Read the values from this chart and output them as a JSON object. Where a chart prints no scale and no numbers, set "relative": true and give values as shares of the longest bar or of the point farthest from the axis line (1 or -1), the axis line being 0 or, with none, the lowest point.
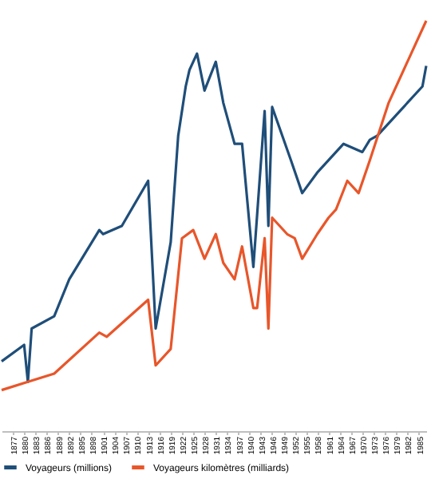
{
  "chart_data": {
    "type": "line",
    "relative": true,
    "legend": "bottom",
    "grid": false,
    "line_style": "solid",
    "marker": "none",
    "xlim": [
      1874,
      1987
    ],
    "xticks": [
      1877,
      1880,
      1883,
      1886,
      1889,
      1892,
      1895,
      1898,
      1901,
      1904,
      1907,
      1910,
      1913,
      1916,
      1919,
      1922,
      1925,
      1928,
      1931,
      1934,
      1937,
      1940,
      1943,
      1946,
      1949,
      1952,
      1955,
      1958,
      1961,
      1964,
      1967,
      1970,
      1973,
      1976,
      1979,
      1982,
      1985
    ],
    "series": [
      {
        "name": "Voyageurs (millions)",
        "color": "#1f4e79",
        "x": [
          1874,
          1880,
          1881,
          1882,
          1888,
          1892,
          1900,
          1901,
          1906,
          1913,
          1915,
          1919,
          1921,
          1923,
          1924,
          1926,
          1928,
          1931,
          1933,
          1936,
          1938,
          1941,
          1944,
          1945,
          1946,
          1951,
          1954,
          1958,
          1965,
          1970,
          1972,
          1974,
          1980,
          1986,
          1987
        ],
        "values": [
          0.17,
          0.21,
          0.12,
          0.25,
          0.28,
          0.37,
          0.49,
          0.48,
          0.5,
          0.61,
          0.25,
          0.46,
          0.72,
          0.84,
          0.88,
          0.92,
          0.83,
          0.9,
          0.8,
          0.7,
          0.7,
          0.4,
          0.78,
          0.5,
          0.79,
          0.66,
          0.58,
          0.63,
          0.7,
          0.68,
          0.71,
          0.72,
          0.78,
          0.84,
          0.89
        ]
      },
      {
        "name": "Voyageurs kilomètres (milliards)",
        "color": "#e8562a",
        "x": [
          1874,
          1881,
          1888,
          1900,
          1902,
          1913,
          1915,
          1919,
          1922,
          1925,
          1928,
          1931,
          1933,
          1936,
          1938,
          1941,
          1942,
          1944,
          1945,
          1946,
          1950,
          1952,
          1954,
          1958,
          1961,
          1963,
          1966,
          1969,
          1972,
          1977,
          1983,
          1987
        ],
        "values": [
          0.1,
          0.12,
          0.14,
          0.24,
          0.23,
          0.32,
          0.16,
          0.2,
          0.47,
          0.49,
          0.42,
          0.48,
          0.41,
          0.37,
          0.45,
          0.3,
          0.3,
          0.47,
          0.25,
          0.52,
          0.48,
          0.47,
          0.42,
          0.48,
          0.52,
          0.54,
          0.61,
          0.58,
          0.66,
          0.8,
          0.92,
          1.0
        ]
      }
    ]
  }
}
